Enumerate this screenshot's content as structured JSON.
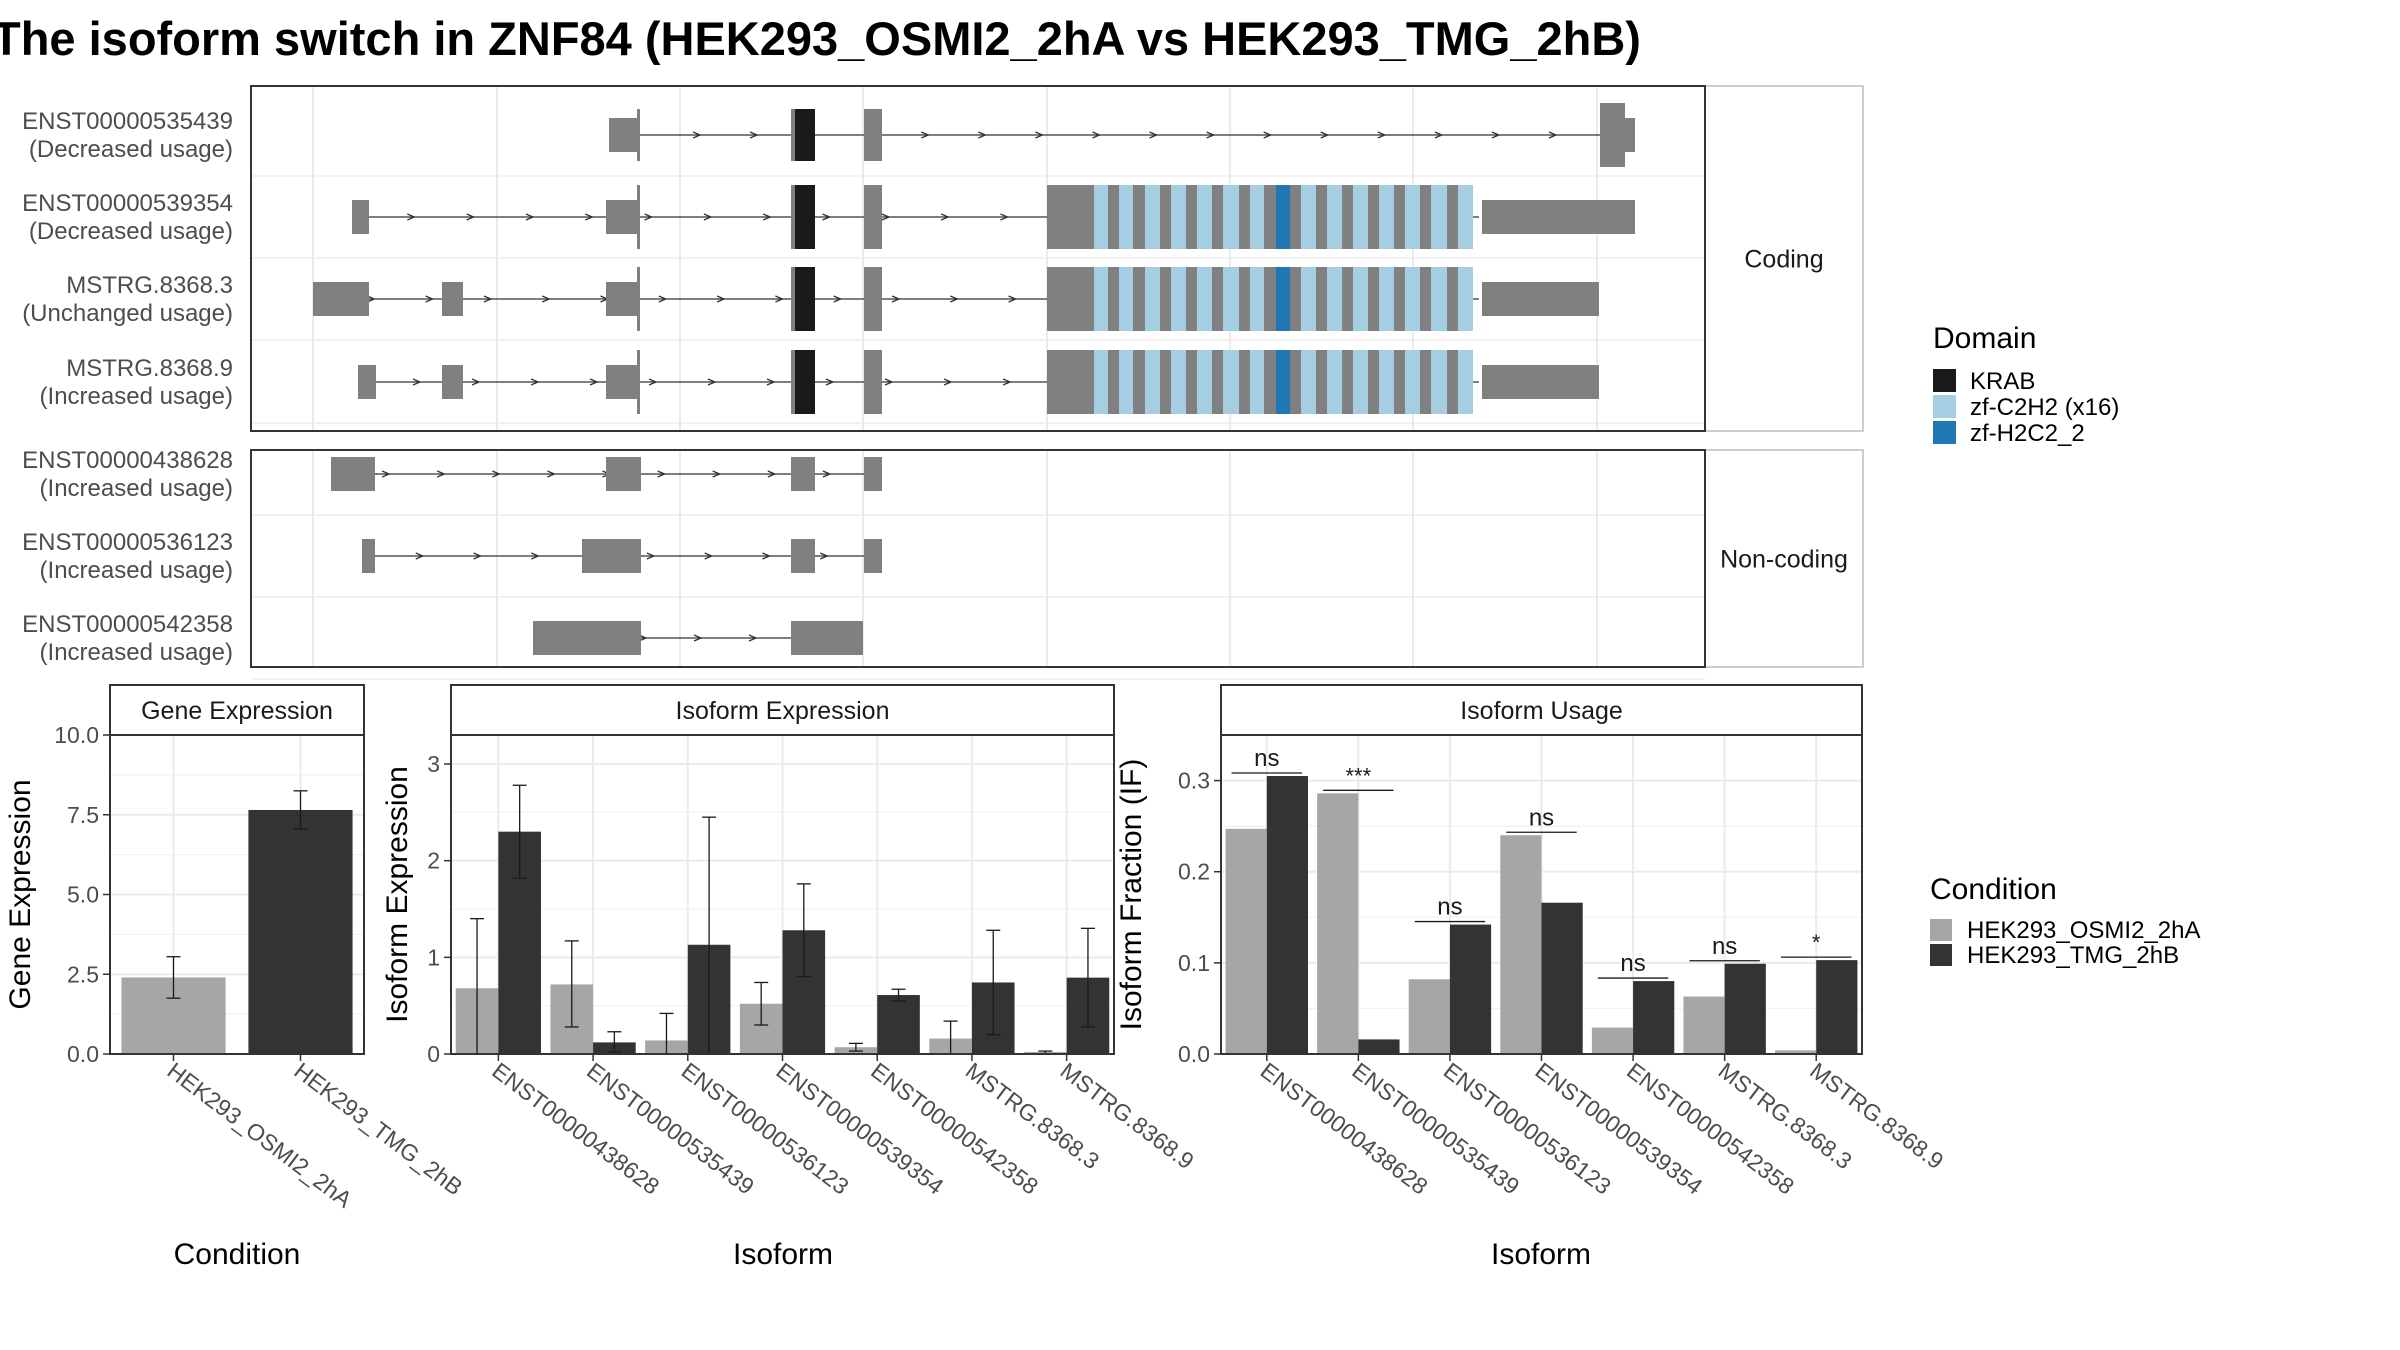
{
  "title": "The isoform switch in ZNF84 (HEK293_OSMI2_2hA vs HEK293_TMG_2hB)",
  "colors": {
    "exon": "#808080",
    "krab": "#1a1a1a",
    "c2h2": "#a6cee3",
    "h2c2": "#1f78b4",
    "cond1": "#a6a6a6",
    "cond2": "#333333",
    "grid": "#ebebeb"
  },
  "structure": {
    "coding_label": "Coding",
    "noncoding_label": "Non-coding",
    "coding": [
      {
        "id": "ENST00000535439",
        "status": "(Decreased usage)"
      },
      {
        "id": "ENST00000539354",
        "status": "(Decreased usage)"
      },
      {
        "id": "MSTRG.8368.3",
        "status": "(Unchanged usage)"
      },
      {
        "id": "MSTRG.8368.9",
        "status": "(Increased usage)"
      }
    ],
    "noncoding": [
      {
        "id": "ENST00000438628",
        "status": "(Increased usage)"
      },
      {
        "id": "ENST00000536123",
        "status": "(Increased usage)"
      },
      {
        "id": "ENST00000542358",
        "status": "(Increased usage)"
      }
    ]
  },
  "domain_legend": {
    "title": "Domain",
    "items": [
      {
        "label": "KRAB",
        "color": "#1a1a1a"
      },
      {
        "label": "zf-C2H2 (x16)",
        "color": "#a6cee3"
      },
      {
        "label": "zf-H2C2_2",
        "color": "#1f78b4"
      }
    ]
  },
  "condition_legend": {
    "title": "Condition",
    "items": [
      {
        "label": "HEK293_OSMI2_2hA",
        "color": "#a6a6a6"
      },
      {
        "label": "HEK293_TMG_2hB",
        "color": "#333333"
      }
    ]
  },
  "chart_data": [
    {
      "type": "bar",
      "title": "Gene Expression",
      "xlabel": "Condition",
      "ylabel": "Gene Expression",
      "ylim": [
        0,
        10
      ],
      "yticks": [
        "0.0",
        "2.5",
        "5.0",
        "7.5",
        "10.0"
      ],
      "categories": [
        "HEK293_OSMI2_2hA",
        "HEK293_TMG_2hB"
      ],
      "values": [
        2.4,
        7.65
      ],
      "errors": [
        [
          1.75,
          3.05
        ],
        [
          7.05,
          8.25
        ]
      ]
    },
    {
      "type": "bar",
      "title": "Isoform Expression",
      "xlabel": "Isoform",
      "ylabel": "Isoform Expression",
      "ylim": [
        0,
        3.3
      ],
      "yticks": [
        "0",
        "1",
        "2",
        "3"
      ],
      "categories": [
        "ENST00000438628",
        "ENST00000535439",
        "ENST00000536123",
        "ENST00000539354",
        "ENST00000542358",
        "MSTRG.8368.3",
        "MSTRG.8368.9"
      ],
      "series": [
        {
          "name": "HEK293_OSMI2_2hA",
          "values": [
            0.68,
            0.72,
            0.14,
            0.52,
            0.07,
            0.16,
            0.02
          ],
          "errors": [
            [
              0.0,
              1.4
            ],
            [
              0.28,
              1.17
            ],
            [
              0.0,
              0.42
            ],
            [
              0.3,
              0.74
            ],
            [
              0.03,
              0.11
            ],
            [
              0.0,
              0.34
            ],
            [
              0.0,
              0.03
            ]
          ]
        },
        {
          "name": "HEK293_TMG_2hB",
          "values": [
            2.3,
            0.12,
            1.13,
            1.28,
            0.61,
            0.74,
            0.79
          ],
          "errors": [
            [
              1.82,
              2.78
            ],
            [
              0.02,
              0.23
            ],
            [
              0.0,
              2.45
            ],
            [
              0.8,
              1.76
            ],
            [
              0.55,
              0.67
            ],
            [
              0.2,
              1.28
            ],
            [
              0.28,
              1.3
            ]
          ]
        }
      ]
    },
    {
      "type": "bar",
      "title": "Isoform Usage",
      "xlabel": "Isoform",
      "ylabel": "Isoform Fraction (IF)",
      "ylim": [
        0,
        0.35
      ],
      "yticks": [
        "0.0",
        "0.1",
        "0.2",
        "0.3"
      ],
      "categories": [
        "ENST00000438628",
        "ENST00000535439",
        "ENST00000536123",
        "ENST00000539354",
        "ENST00000542358",
        "MSTRG.8368.3",
        "MSTRG.8368.9"
      ],
      "series": [
        {
          "name": "HEK293_OSMI2_2hA",
          "values": [
            0.247,
            0.286,
            0.082,
            0.24,
            0.029,
            0.063,
            0.004
          ]
        },
        {
          "name": "HEK293_TMG_2hB",
          "values": [
            0.305,
            0.016,
            0.142,
            0.166,
            0.08,
            0.099,
            0.103
          ]
        }
      ],
      "significance": [
        "ns",
        "***",
        "ns",
        "ns",
        "ns",
        "ns",
        "*"
      ]
    }
  ]
}
